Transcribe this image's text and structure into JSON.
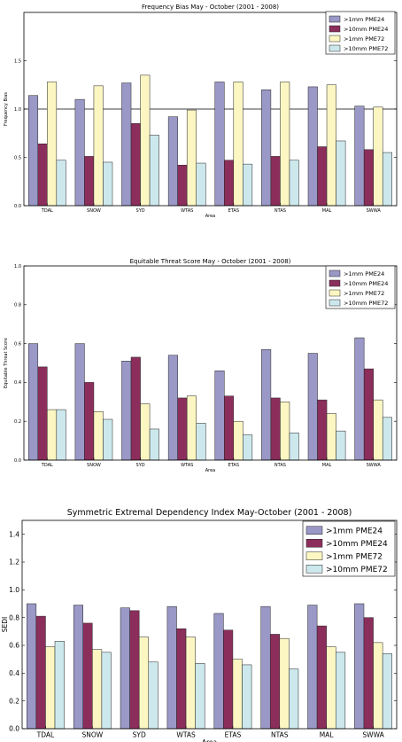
{
  "chart_data": [
    {
      "type": "bar",
      "title": "Frequency Bias May - October (2001 - 2008)",
      "xlabel": "Area",
      "ylabel": "Frequency Bias",
      "ylim": [
        0.0,
        2.0
      ],
      "yticks": [
        "0.0",
        "0.5",
        "1.0",
        "1.5"
      ],
      "reference_line": 1.0,
      "legend_position": "top-right",
      "categories": [
        "TDAL",
        "SNOW",
        "SYD",
        "WTAS",
        "ETAS",
        "NTAS",
        "MAL",
        "SWWA"
      ],
      "series": [
        {
          "name": ">1mm PME24",
          "values": [
            1.14,
            1.1,
            1.27,
            0.92,
            1.28,
            1.2,
            1.23,
            1.03
          ]
        },
        {
          "name": ">10mm PME24",
          "values": [
            0.64,
            0.51,
            0.85,
            0.42,
            0.47,
            0.51,
            0.61,
            0.58
          ]
        },
        {
          "name": ">1mm PME72",
          "values": [
            1.28,
            1.24,
            1.35,
            0.99,
            1.28,
            1.28,
            1.25,
            1.02
          ]
        },
        {
          "name": ">10mm PME72",
          "values": [
            0.47,
            0.45,
            0.73,
            0.44,
            0.43,
            0.47,
            0.67,
            0.55
          ]
        }
      ]
    },
    {
      "type": "bar",
      "title": "Equitable Threat Score May - October (2001 - 2008)",
      "xlabel": "Area",
      "ylabel": "Equitable Threat Score",
      "ylim": [
        0.0,
        1.0
      ],
      "yticks": [
        "0.0",
        "0.2",
        "0.4",
        "0.6",
        "0.8",
        "1.0"
      ],
      "legend_position": "top-right",
      "categories": [
        "TDAL",
        "SNOW",
        "SYD",
        "WTAS",
        "ETAS",
        "NTAS",
        "MAL",
        "SWWA"
      ],
      "series": [
        {
          "name": ">1mm PME24",
          "values": [
            0.6,
            0.6,
            0.51,
            0.54,
            0.46,
            0.57,
            0.55,
            0.63
          ]
        },
        {
          "name": ">10mm PME24",
          "values": [
            0.48,
            0.4,
            0.53,
            0.32,
            0.33,
            0.32,
            0.31,
            0.47
          ]
        },
        {
          "name": ">1mm PME72",
          "values": [
            0.26,
            0.25,
            0.29,
            0.33,
            0.2,
            0.3,
            0.24,
            0.31
          ]
        },
        {
          "name": ">10mm PME72",
          "values": [
            0.26,
            0.21,
            0.16,
            0.19,
            0.13,
            0.14,
            0.15,
            0.22
          ]
        }
      ]
    },
    {
      "type": "bar",
      "title": "Symmetric Extremal Dependency Index May-October (2001 - 2008)",
      "xlabel": "Area",
      "ylabel": "SEDI",
      "ylim": [
        0.0,
        1.5
      ],
      "yticks": [
        "0.0",
        "0.2",
        "0.4",
        "0.6",
        "0.8",
        "1.0",
        "1.2",
        "1.4"
      ],
      "legend_position": "top-right",
      "categories": [
        "TDAL",
        "SNOW",
        "SYD",
        "WTAS",
        "ETAS",
        "NTAS",
        "MAL",
        "SWWA"
      ],
      "series": [
        {
          "name": ">1mm PME24",
          "values": [
            0.9,
            0.89,
            0.87,
            0.88,
            0.83,
            0.88,
            0.89,
            0.9
          ]
        },
        {
          "name": ">10mm PME24",
          "values": [
            0.81,
            0.76,
            0.85,
            0.72,
            0.71,
            0.68,
            0.74,
            0.8
          ]
        },
        {
          "name": ">1mm PME72",
          "values": [
            0.59,
            0.57,
            0.66,
            0.66,
            0.5,
            0.65,
            0.59,
            0.62
          ]
        },
        {
          "name": ">10mm PME72",
          "values": [
            0.63,
            0.55,
            0.48,
            0.47,
            0.46,
            0.43,
            0.55,
            0.54
          ]
        }
      ]
    }
  ],
  "series_colors": [
    "#9a98c6",
    "#8b2e5b",
    "#fcf6c2",
    "#cde8ed"
  ]
}
